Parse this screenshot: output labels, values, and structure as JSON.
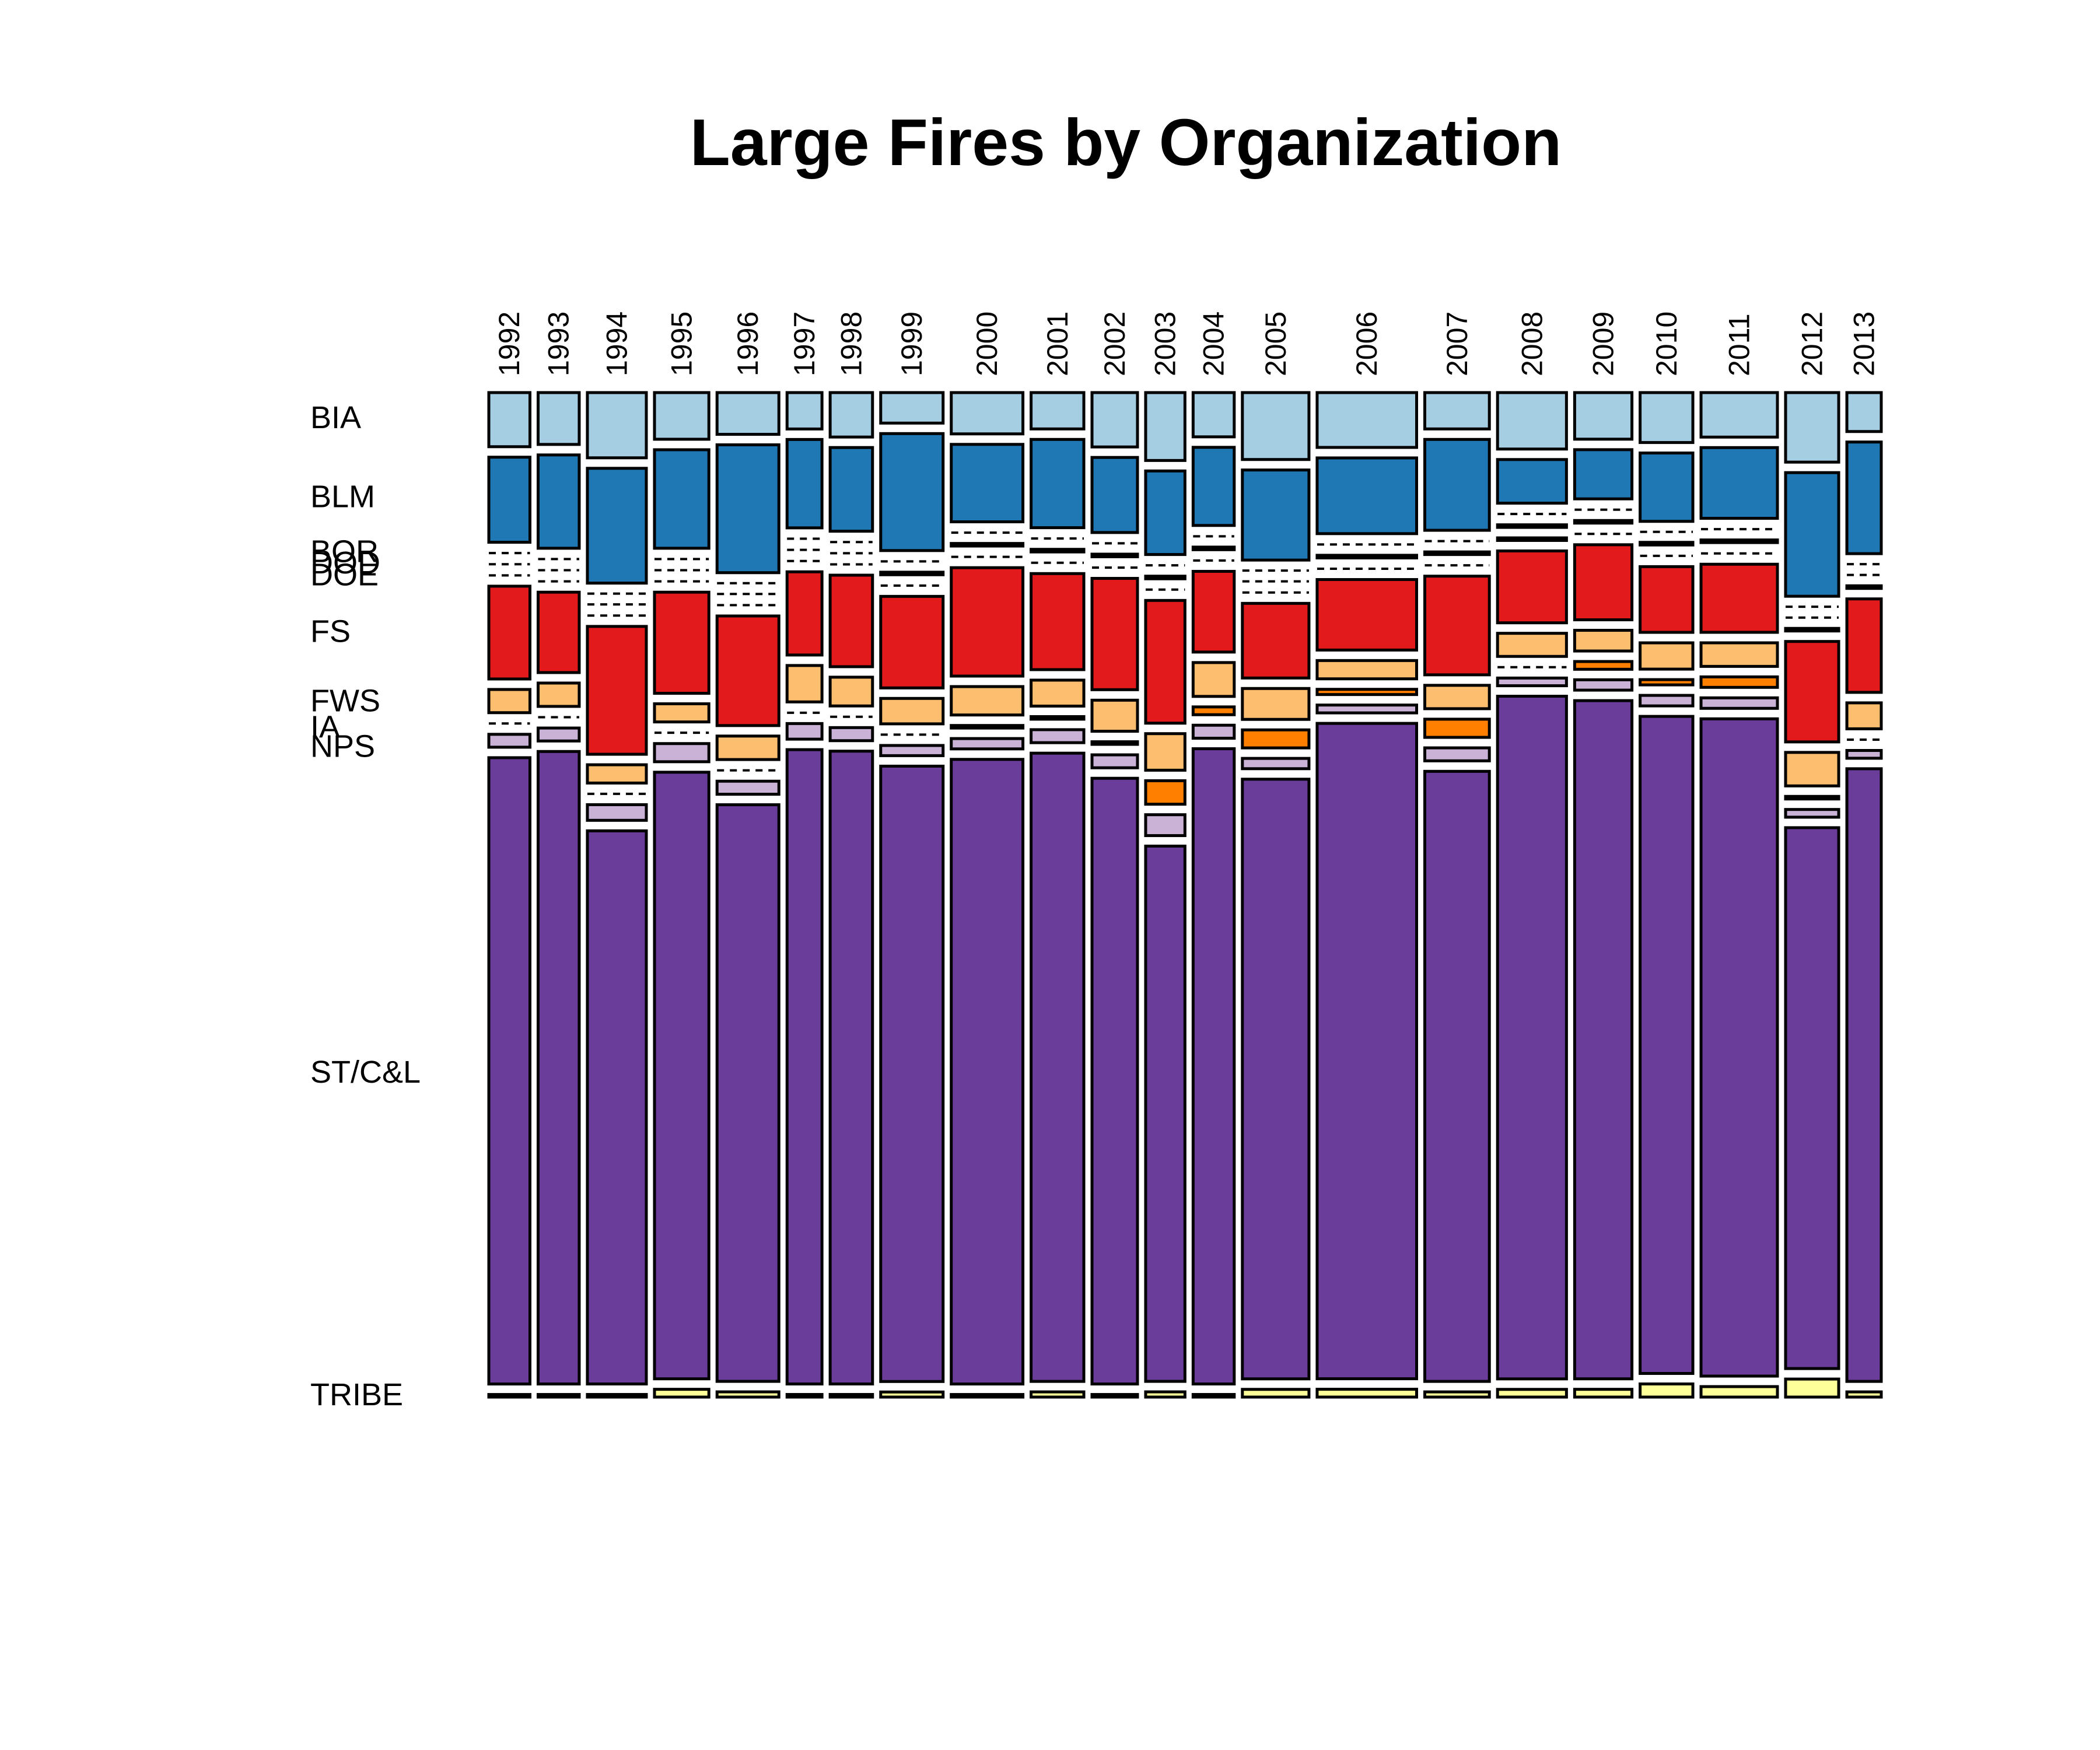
{
  "chart_data": {
    "type": "mosaic",
    "title": "Large Fires by Organization",
    "xlabel": "",
    "ylabel": "",
    "categories": [
      "1992",
      "1993",
      "1994",
      "1995",
      "1996",
      "1997",
      "1998",
      "1999",
      "2000",
      "2001",
      "2002",
      "2003",
      "2004",
      "2005",
      "2006",
      "2007",
      "2008",
      "2009",
      "2010",
      "2011",
      "2012",
      "2013"
    ],
    "column_widths": [
      0.0226,
      0.0226,
      0.0324,
      0.0299,
      0.034,
      0.0192,
      0.0233,
      0.0343,
      0.0394,
      0.029,
      0.025,
      0.0216,
      0.0226,
      0.0366,
      0.0547,
      0.0355,
      0.0379,
      0.0315,
      0.029,
      0.042,
      0.0292,
      0.0189
    ],
    "series": [
      {
        "name": "BIA",
        "color": "#a6cee3",
        "values": [
          4.2,
          4.0,
          5.0,
          3.6,
          3.2,
          2.8,
          3.4,
          2.4,
          3.2,
          2.8,
          4.2,
          5.2,
          3.4,
          5.2,
          4.2,
          2.8,
          4.4,
          3.6,
          3.8,
          3.4,
          5.4,
          3.0
        ]
      },
      {
        "name": "BLM",
        "color": "#1f78b4",
        "values": [
          6.6,
          7.2,
          8.8,
          7.6,
          9.8,
          6.8,
          6.4,
          9.2,
          6.0,
          6.8,
          5.8,
          6.4,
          6.0,
          7.0,
          5.8,
          7.0,
          3.4,
          3.8,
          5.2,
          5.4,
          9.6,
          8.6
        ]
      },
      {
        "name": "BOR",
        "color": "#b2df8a",
        "values": [
          0.05,
          0.05,
          0.0,
          0.05,
          0.0,
          0.05,
          0.05,
          0.05,
          0.05,
          0.05,
          0.05,
          0.05,
          0.05,
          0.0,
          0.05,
          0.05,
          0.05,
          0.05,
          0.0,
          0.05,
          0.0,
          0.0
        ]
      },
      {
        "name": "DOD",
        "color": "#33a02c",
        "values": [
          0.05,
          0.05,
          0.05,
          0.05,
          0.05,
          0.05,
          0.05,
          0.2,
          0.2,
          0.2,
          0.2,
          0.2,
          0.2,
          0.05,
          0.2,
          0.2,
          0.2,
          0.2,
          0.2,
          0.2,
          0.05,
          0.05
        ]
      },
      {
        "name": "DOE",
        "color": "#fb9a99",
        "values": [
          0.05,
          0.05,
          0.05,
          0.05,
          0.05,
          0.05,
          0.05,
          0.05,
          0.05,
          0.05,
          0.05,
          0.05,
          0.05,
          0.05,
          0.05,
          0.05,
          0.2,
          0.05,
          0.05,
          0.05,
          0.2,
          0.2
        ]
      },
      {
        "name": "FS",
        "color": "#e31a1c",
        "values": [
          7.2,
          6.2,
          9.8,
          7.8,
          8.4,
          6.4,
          7.0,
          7.2,
          8.4,
          7.4,
          8.6,
          9.4,
          6.2,
          5.8,
          5.4,
          7.6,
          5.6,
          5.8,
          5.0,
          5.2,
          7.8,
          7.2
        ]
      },
      {
        "name": "FWS",
        "color": "#fdbf6f",
        "values": [
          1.8,
          1.8,
          1.4,
          1.4,
          1.8,
          2.8,
          2.2,
          2.0,
          2.2,
          2.0,
          2.4,
          2.8,
          2.6,
          2.4,
          1.4,
          1.8,
          1.8,
          1.6,
          2.0,
          1.8,
          2.6,
          2.0
        ]
      },
      {
        "name": "IA",
        "color": "#ff7f00",
        "values": [
          0.05,
          0.05,
          0.05,
          0.05,
          0.05,
          0.05,
          0.05,
          0.05,
          0.2,
          0.2,
          0.2,
          1.8,
          0.6,
          1.4,
          0.4,
          1.4,
          0.05,
          0.6,
          0.4,
          0.8,
          0.2,
          0.05
        ]
      },
      {
        "name": "NPS",
        "color": "#cab2d6",
        "values": [
          1.0,
          1.0,
          1.2,
          1.4,
          1.0,
          1.2,
          1.0,
          0.8,
          0.8,
          1.0,
          1.0,
          1.6,
          1.0,
          0.8,
          0.6,
          1.0,
          0.6,
          0.8,
          0.8,
          0.8,
          0.6,
          0.6
        ]
      },
      {
        "name": "ST/C&L",
        "color": "#6a3d9a",
        "values": [
          48.6,
          48.8,
          42.4,
          46.8,
          44.2,
          48.8,
          48.4,
          48.4,
          48.4,
          48.4,
          46.8,
          41.0,
          48.8,
          46.6,
          50.2,
          47.0,
          53.2,
          52.4,
          50.0,
          50.2,
          42.0,
          47.2
        ]
      },
      {
        "name": "TRIBE",
        "color": "#ffff99",
        "values": [
          0.2,
          0.2,
          0.2,
          0.6,
          0.4,
          0.2,
          0.2,
          0.4,
          0.2,
          0.4,
          0.2,
          0.4,
          0.2,
          0.6,
          0.6,
          0.4,
          0.6,
          0.6,
          1.0,
          0.8,
          1.4,
          0.4
        ]
      }
    ],
    "legend": "left"
  }
}
